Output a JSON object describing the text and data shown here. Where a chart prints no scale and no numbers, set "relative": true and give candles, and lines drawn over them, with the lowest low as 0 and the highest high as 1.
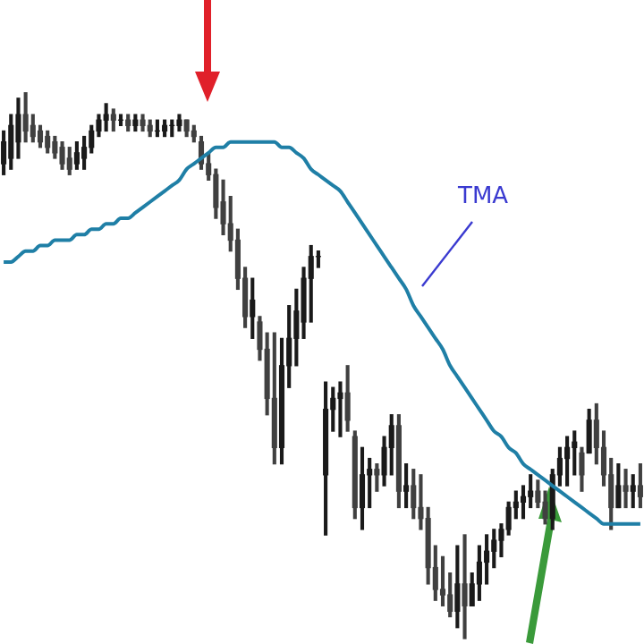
{
  "chart_data": {
    "type": "candlestick",
    "relative": true,
    "categories": [
      null,
      null,
      null,
      null,
      null,
      null,
      null,
      null,
      null,
      null,
      null,
      null,
      null,
      null,
      null,
      null,
      null,
      null,
      null,
      null,
      null,
      null,
      null,
      null,
      null,
      null,
      null,
      null,
      null,
      null,
      null,
      null,
      null,
      null,
      null,
      null,
      null,
      null,
      null,
      null,
      null,
      null,
      null,
      null,
      null,
      null,
      null,
      null,
      null,
      null,
      null,
      null,
      null,
      null,
      null,
      null,
      null,
      null,
      null,
      null,
      null,
      null,
      null,
      null,
      null,
      null,
      null,
      null,
      null,
      null,
      null,
      null,
      null,
      null,
      null,
      null,
      null,
      null,
      null,
      null,
      null,
      null,
      null,
      null,
      null,
      null,
      null,
      null
    ],
    "ohlc": [
      [
        0.87,
        0.93,
        0.85,
        0.91
      ],
      [
        0.88,
        0.96,
        0.86,
        0.94
      ],
      [
        0.91,
        0.99,
        0.88,
        0.96
      ],
      [
        0.96,
        1.0,
        0.91,
        0.93
      ],
      [
        0.94,
        0.96,
        0.91,
        0.92
      ],
      [
        0.93,
        0.94,
        0.9,
        0.91
      ],
      [
        0.92,
        0.93,
        0.89,
        0.9
      ],
      [
        0.91,
        0.92,
        0.88,
        0.89
      ],
      [
        0.9,
        0.91,
        0.86,
        0.87
      ],
      [
        0.88,
        0.9,
        0.85,
        0.86
      ],
      [
        0.87,
        0.91,
        0.86,
        0.89
      ],
      [
        0.88,
        0.92,
        0.86,
        0.9
      ],
      [
        0.9,
        0.94,
        0.89,
        0.93
      ],
      [
        0.93,
        0.96,
        0.92,
        0.95
      ],
      [
        0.95,
        0.98,
        0.93,
        0.96
      ],
      [
        0.96,
        0.97,
        0.93,
        0.95
      ],
      [
        0.95,
        0.96,
        0.94,
        0.95
      ],
      [
        0.95,
        0.96,
        0.93,
        0.94
      ],
      [
        0.94,
        0.96,
        0.93,
        0.95
      ],
      [
        0.95,
        0.96,
        0.93,
        0.94
      ],
      [
        0.94,
        0.95,
        0.92,
        0.93
      ],
      [
        0.93,
        0.95,
        0.92,
        0.93
      ],
      [
        0.93,
        0.95,
        0.92,
        0.94
      ],
      [
        0.94,
        0.95,
        0.92,
        0.94
      ],
      [
        0.94,
        0.96,
        0.93,
        0.95
      ],
      [
        0.95,
        0.95,
        0.92,
        0.93
      ],
      [
        0.93,
        0.94,
        0.91,
        0.92
      ],
      [
        0.91,
        0.92,
        0.86,
        0.87
      ],
      [
        0.87,
        0.89,
        0.84,
        0.85
      ],
      [
        0.85,
        0.86,
        0.77,
        0.79
      ],
      [
        0.8,
        0.84,
        0.74,
        0.76
      ],
      [
        0.76,
        0.81,
        0.71,
        0.73
      ],
      [
        0.73,
        0.75,
        0.64,
        0.66
      ],
      [
        0.66,
        0.68,
        0.57,
        0.59
      ],
      [
        0.59,
        0.66,
        0.55,
        0.62
      ],
      [
        0.58,
        0.59,
        0.51,
        0.53
      ],
      [
        0.53,
        0.56,
        0.41,
        0.44
      ],
      [
        0.44,
        0.56,
        0.32,
        0.35
      ],
      [
        0.35,
        0.55,
        0.32,
        0.5
      ],
      [
        0.5,
        0.61,
        0.46,
        0.55
      ],
      [
        0.55,
        0.64,
        0.5,
        0.6
      ],
      [
        0.58,
        0.68,
        0.55,
        0.66
      ],
      [
        0.66,
        0.72,
        0.58,
        0.7
      ],
      [
        0.7,
        0.71,
        0.68,
        0.7
      ],
      [
        0.3,
        0.47,
        0.19,
        0.42
      ],
      [
        0.42,
        0.46,
        0.38,
        0.44
      ],
      [
        0.44,
        0.47,
        0.37,
        0.45
      ],
      [
        0.45,
        0.5,
        0.38,
        0.4
      ],
      [
        0.37,
        0.38,
        0.22,
        0.24
      ],
      [
        0.24,
        0.35,
        0.2,
        0.3
      ],
      [
        0.3,
        0.33,
        0.24,
        0.31
      ],
      [
        0.31,
        0.32,
        0.27,
        0.3
      ],
      [
        0.3,
        0.37,
        0.28,
        0.35
      ],
      [
        0.35,
        0.41,
        0.3,
        0.39
      ],
      [
        0.39,
        0.41,
        0.24,
        0.27
      ],
      [
        0.27,
        0.32,
        0.24,
        0.28
      ],
      [
        0.28,
        0.31,
        0.22,
        0.24
      ],
      [
        0.24,
        0.3,
        0.2,
        0.22
      ],
      [
        0.22,
        0.24,
        0.1,
        0.13
      ],
      [
        0.13,
        0.17,
        0.07,
        0.09
      ],
      [
        0.09,
        0.15,
        0.06,
        0.08
      ],
      [
        0.08,
        0.12,
        0.04,
        0.05
      ],
      [
        0.05,
        0.17,
        0.02,
        0.1
      ],
      [
        0.1,
        0.19,
        0.0,
        0.06
      ],
      [
        0.06,
        0.12,
        0.06,
        0.1
      ],
      [
        0.1,
        0.17,
        0.07,
        0.14
      ],
      [
        0.14,
        0.19,
        0.1,
        0.16
      ],
      [
        0.16,
        0.2,
        0.13,
        0.18
      ],
      [
        0.18,
        0.21,
        0.15,
        0.2
      ],
      [
        0.2,
        0.25,
        0.19,
        0.24
      ],
      [
        0.24,
        0.27,
        0.22,
        0.25
      ],
      [
        0.25,
        0.28,
        0.22,
        0.26
      ],
      [
        0.26,
        0.3,
        0.24,
        0.27
      ],
      [
        0.27,
        0.29,
        0.24,
        0.25
      ],
      [
        0.25,
        0.27,
        0.21,
        0.22
      ],
      [
        0.22,
        0.31,
        0.2,
        0.3
      ],
      [
        0.3,
        0.35,
        0.28,
        0.33
      ],
      [
        0.33,
        0.37,
        0.28,
        0.35
      ],
      [
        0.35,
        0.38,
        0.3,
        0.36
      ],
      [
        0.34,
        0.35,
        0.27,
        0.3
      ],
      [
        0.34,
        0.42,
        0.34,
        0.4
      ],
      [
        0.4,
        0.43,
        0.32,
        0.35
      ],
      [
        0.35,
        0.38,
        0.28,
        0.3
      ],
      [
        0.3,
        0.33,
        0.2,
        0.24
      ],
      [
        0.24,
        0.32,
        0.24,
        0.28
      ],
      [
        0.28,
        0.31,
        0.24,
        0.27
      ],
      [
        0.27,
        0.3,
        0.24,
        0.28
      ],
      [
        0.28,
        0.32,
        0.24,
        0.26
      ]
    ],
    "colors": [
      "#1a1a1a",
      "#1a1a1a",
      "#1a1a1a",
      "#404040",
      "#404040",
      "#404040",
      "#404040",
      "#404040",
      "#404040",
      "#404040",
      "#1a1a1a",
      "#1a1a1a",
      "#1a1a1a",
      "#1a1a1a",
      "#1a1a1a",
      "#404040",
      "#1a1a1a",
      "#404040",
      "#1a1a1a",
      "#404040",
      "#404040",
      "#1a1a1a",
      "#1a1a1a",
      "#1a1a1a",
      "#1a1a1a",
      "#404040",
      "#404040",
      "#404040",
      "#404040",
      "#404040",
      "#404040",
      "#404040",
      "#404040",
      "#404040",
      "#1a1a1a",
      "#404040",
      "#404040",
      "#404040",
      "#1a1a1a",
      "#1a1a1a",
      "#1a1a1a",
      "#1a1a1a",
      "#1a1a1a",
      "#1a1a1a",
      "#1a1a1a",
      "#1a1a1a",
      "#1a1a1a",
      "#404040",
      "#404040",
      "#1a1a1a",
      "#1a1a1a",
      "#404040",
      "#1a1a1a",
      "#1a1a1a",
      "#404040",
      "#1a1a1a",
      "#404040",
      "#404040",
      "#404040",
      "#404040",
      "#404040",
      "#404040",
      "#1a1a1a",
      "#404040",
      "#1a1a1a",
      "#1a1a1a",
      "#1a1a1a",
      "#1a1a1a",
      "#1a1a1a",
      "#1a1a1a",
      "#1a1a1a",
      "#1a1a1a",
      "#1a1a1a",
      "#404040",
      "#404040",
      "#1a1a1a",
      "#1a1a1a",
      "#1a1a1a",
      "#1a1a1a",
      "#404040",
      "#1a1a1a",
      "#404040",
      "#404040",
      "#404040",
      "#1a1a1a",
      "#404040",
      "#1a1a1a",
      "#404040"
    ],
    "series": [
      {
        "type": "line",
        "color": "#1f7fa6",
        "values": [
          0.69,
          0.69,
          0.7,
          0.71,
          0.71,
          0.72,
          0.72,
          0.73,
          0.73,
          0.73,
          0.74,
          0.74,
          0.75,
          0.75,
          0.76,
          0.76,
          0.77,
          0.77,
          0.78,
          0.79,
          0.8,
          0.81,
          0.82,
          0.83,
          0.84,
          0.86,
          0.87,
          0.88,
          0.89,
          0.9,
          0.9,
          0.91,
          0.91,
          0.91,
          0.91,
          0.91,
          0.91,
          0.91,
          0.9,
          0.9,
          0.89,
          0.88,
          0.86,
          0.85,
          0.84,
          0.83,
          0.82,
          0.8,
          0.78,
          0.76,
          0.74,
          0.72,
          0.7,
          0.68,
          0.66,
          0.64,
          0.61,
          0.59,
          0.57,
          0.55,
          0.53,
          0.5,
          0.48,
          0.46,
          0.44,
          0.42,
          0.4,
          0.38,
          0.37,
          0.35,
          0.34,
          0.32,
          0.31,
          0.3,
          0.29,
          0.28,
          0.27,
          0.26,
          0.25,
          0.24,
          0.23,
          0.22,
          0.21,
          0.21,
          0.21,
          0.21,
          0.21,
          0.21
        ]
      }
    ],
    "annotations": [
      "TMA"
    ]
  }
}
